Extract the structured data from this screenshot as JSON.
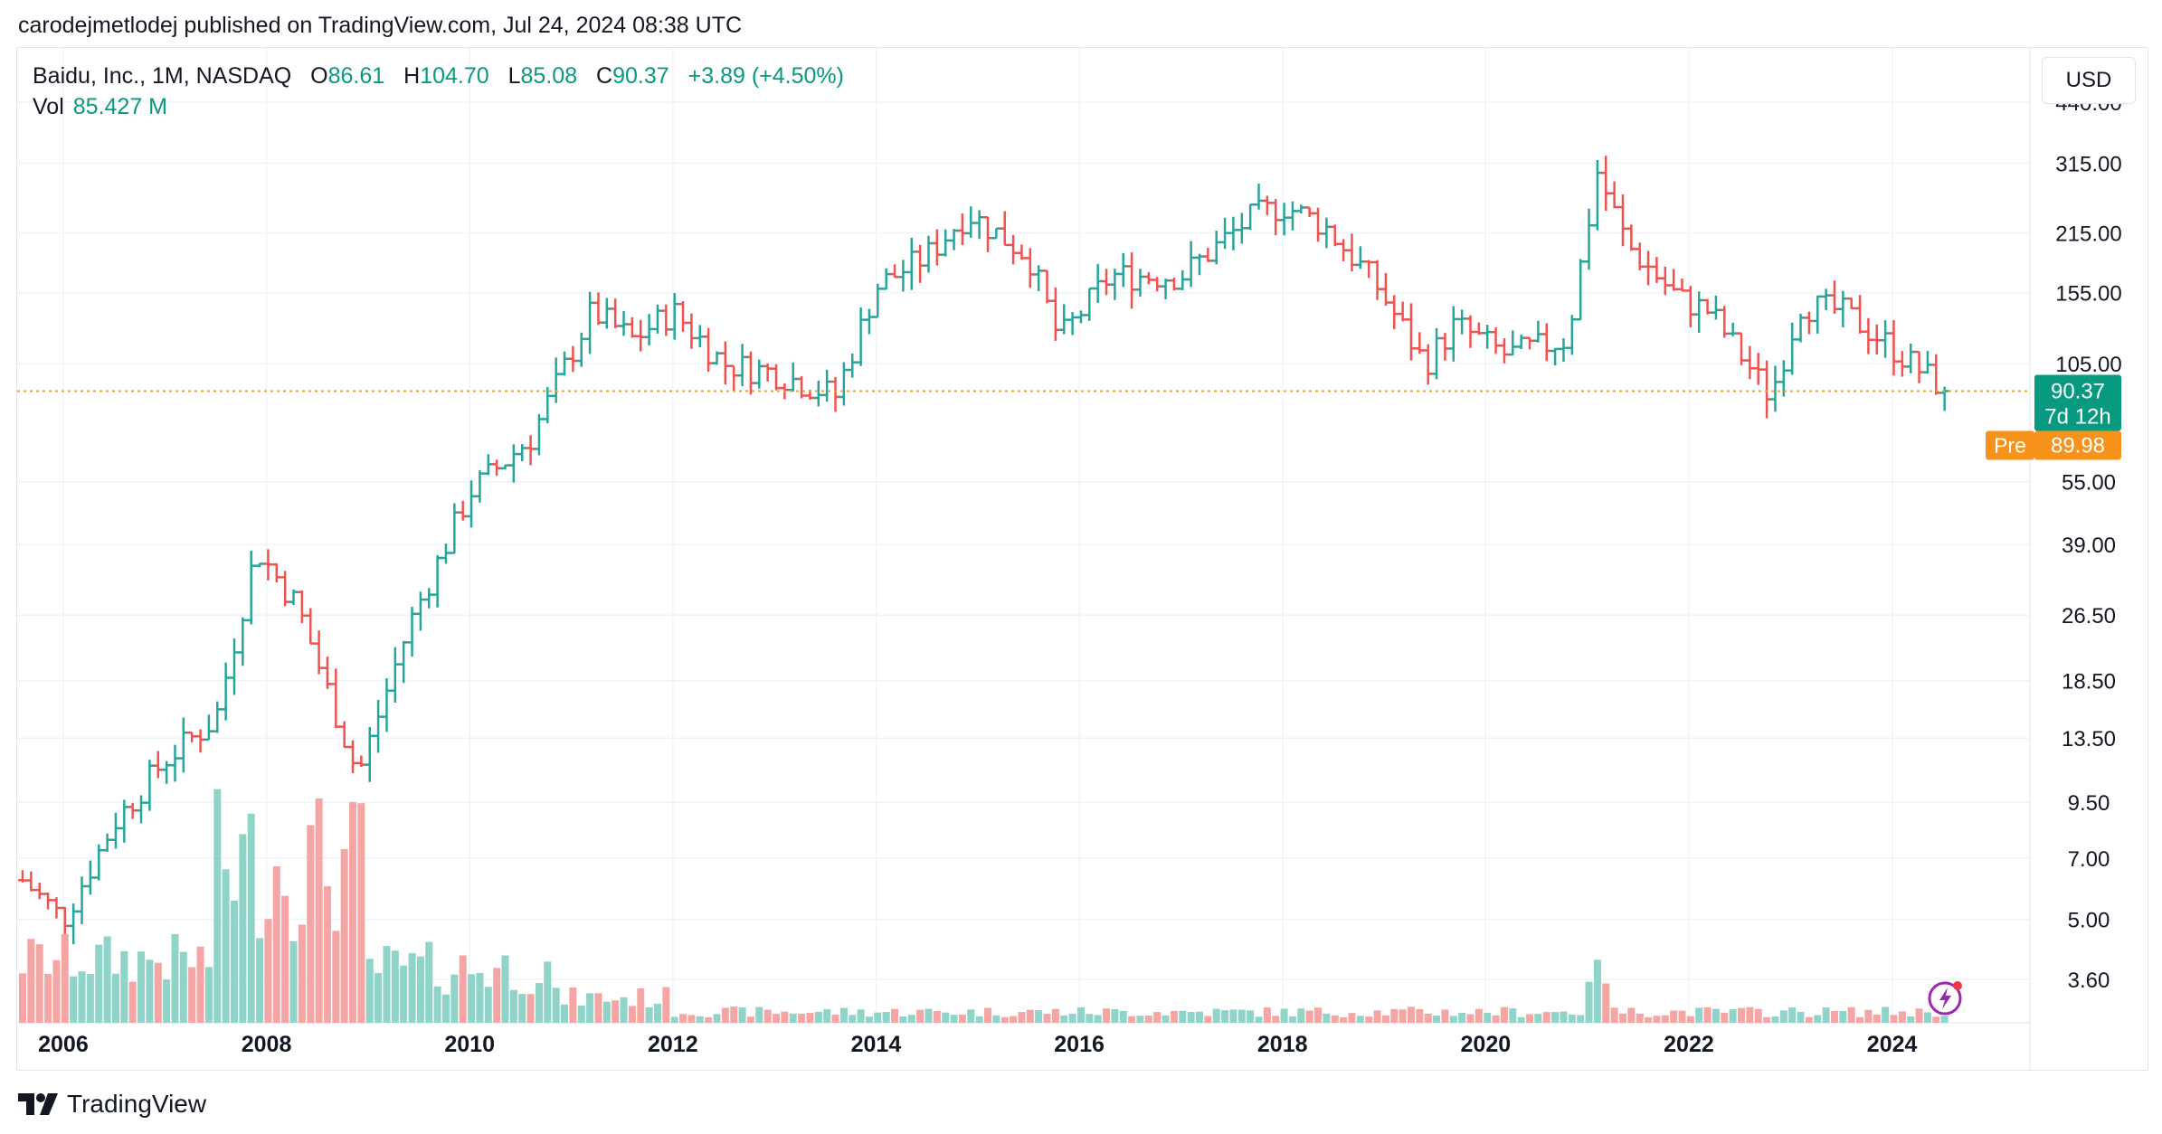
{
  "publisher_line": "carodejmetlodej published on TradingView.com, Jul 24, 2024 08:38 UTC",
  "legend": {
    "title": "Baidu, Inc., 1M, NASDAQ",
    "open_label": "O",
    "open": "86.61",
    "high_label": "H",
    "high": "104.70",
    "low_label": "L",
    "low": "85.08",
    "close_label": "C",
    "close": "90.37",
    "change": "+3.89 (+4.50%)",
    "vol_label": "Vol",
    "vol": "85.427 M"
  },
  "currency_button": "USD",
  "price_tag": {
    "price": "90.37",
    "countdown": "7d 12h"
  },
  "pre_tag": {
    "label": "Pre",
    "price": "89.98"
  },
  "brand": "TradingView",
  "colors": {
    "up": "#26a69a",
    "down": "#ef5350",
    "vol_up": "#8fd3c9",
    "vol_down": "#f5a5a3",
    "last_price": "#089981",
    "pre": "#f7931a",
    "grid": "#f0f3fa",
    "dotted": "#e6a23c"
  },
  "chart_data": {
    "type": "ohlc",
    "symbol": "BIDU",
    "interval": "1M",
    "y_scale": "log",
    "y_ticks": [
      "440.00",
      "315.00",
      "215.00",
      "155.00",
      "105.00",
      "55.00",
      "39.00",
      "26.50",
      "18.50",
      "13.50",
      "9.50",
      "7.00",
      "5.00",
      "3.60"
    ],
    "x_ticks": [
      "2006",
      "2008",
      "2010",
      "2012",
      "2014",
      "2016",
      "2018",
      "2020",
      "2022",
      "2024"
    ],
    "x_range": [
      2005.6,
      2024.6
    ],
    "last_price": 90.37,
    "pre_market_price": 89.98,
    "series": [
      {
        "name": "price",
        "years": [
          2005.6,
          2006.0,
          2006.5,
          2007.0,
          2007.5,
          2007.9,
          2008.3,
          2008.9,
          2009.4,
          2010.0,
          2010.6,
          2011.2,
          2011.6,
          2012.0,
          2012.5,
          2013.0,
          2013.6,
          2014.0,
          2014.5,
          2014.9,
          2015.5,
          2015.8,
          2016.3,
          2017.0,
          2017.7,
          2018.0,
          2018.4,
          2018.9,
          2019.4,
          2019.7,
          2020.2,
          2020.8,
          2021.1,
          2021.4,
          2021.9,
          2022.2,
          2022.8,
          2023.1,
          2023.5,
          2023.9,
          2024.3,
          2024.55
        ],
        "close": [
          6.2,
          5.0,
          8.5,
          12,
          15,
          38,
          28,
          11,
          25,
          52,
          70,
          140,
          120,
          140,
          105,
          100,
          88,
          160,
          190,
          240,
          190,
          120,
          170,
          170,
          235,
          250,
          225,
          165,
          105,
          130,
          110,
          120,
          300,
          200,
          150,
          140,
          88,
          145,
          140,
          120,
          100,
          90.37
        ]
      },
      {
        "name": "volume",
        "approx_share_pct": "peaks in 2007-2008, low after 2012, spike in early 2021"
      }
    ]
  }
}
